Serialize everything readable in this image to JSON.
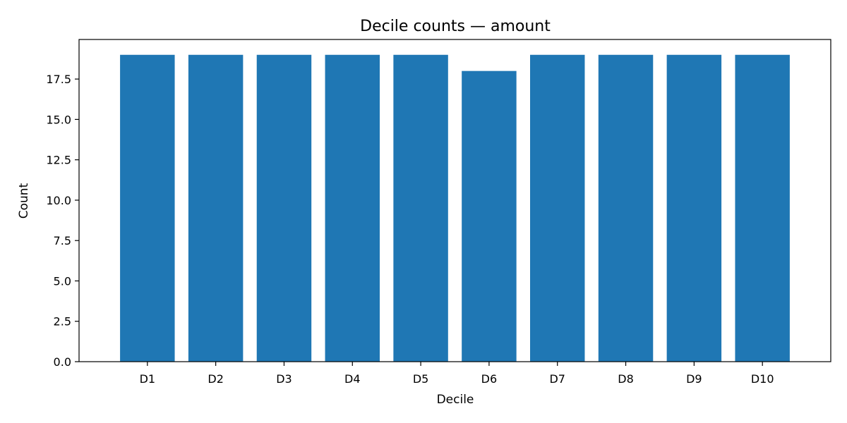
{
  "colors": {
    "bar": "#1f77b4",
    "axis": "#000000",
    "background": "#ffffff"
  },
  "chart_data": {
    "type": "bar",
    "title": "Decile counts — amount",
    "xlabel": "Decile",
    "ylabel": "Count",
    "categories": [
      "D1",
      "D2",
      "D3",
      "D4",
      "D5",
      "D6",
      "D7",
      "D8",
      "D9",
      "D10"
    ],
    "values": [
      19,
      19,
      19,
      19,
      19,
      18,
      19,
      19,
      19,
      19
    ],
    "ylim": [
      0,
      19.95
    ],
    "yticks": [
      0,
      2.5,
      5,
      7.5,
      10,
      12.5,
      15,
      17.5
    ],
    "ytick_labels": [
      "0.0",
      "2.5",
      "5.0",
      "7.5",
      "10.0",
      "12.5",
      "15.0",
      "17.5"
    ],
    "grid": false,
    "legend": "none"
  }
}
